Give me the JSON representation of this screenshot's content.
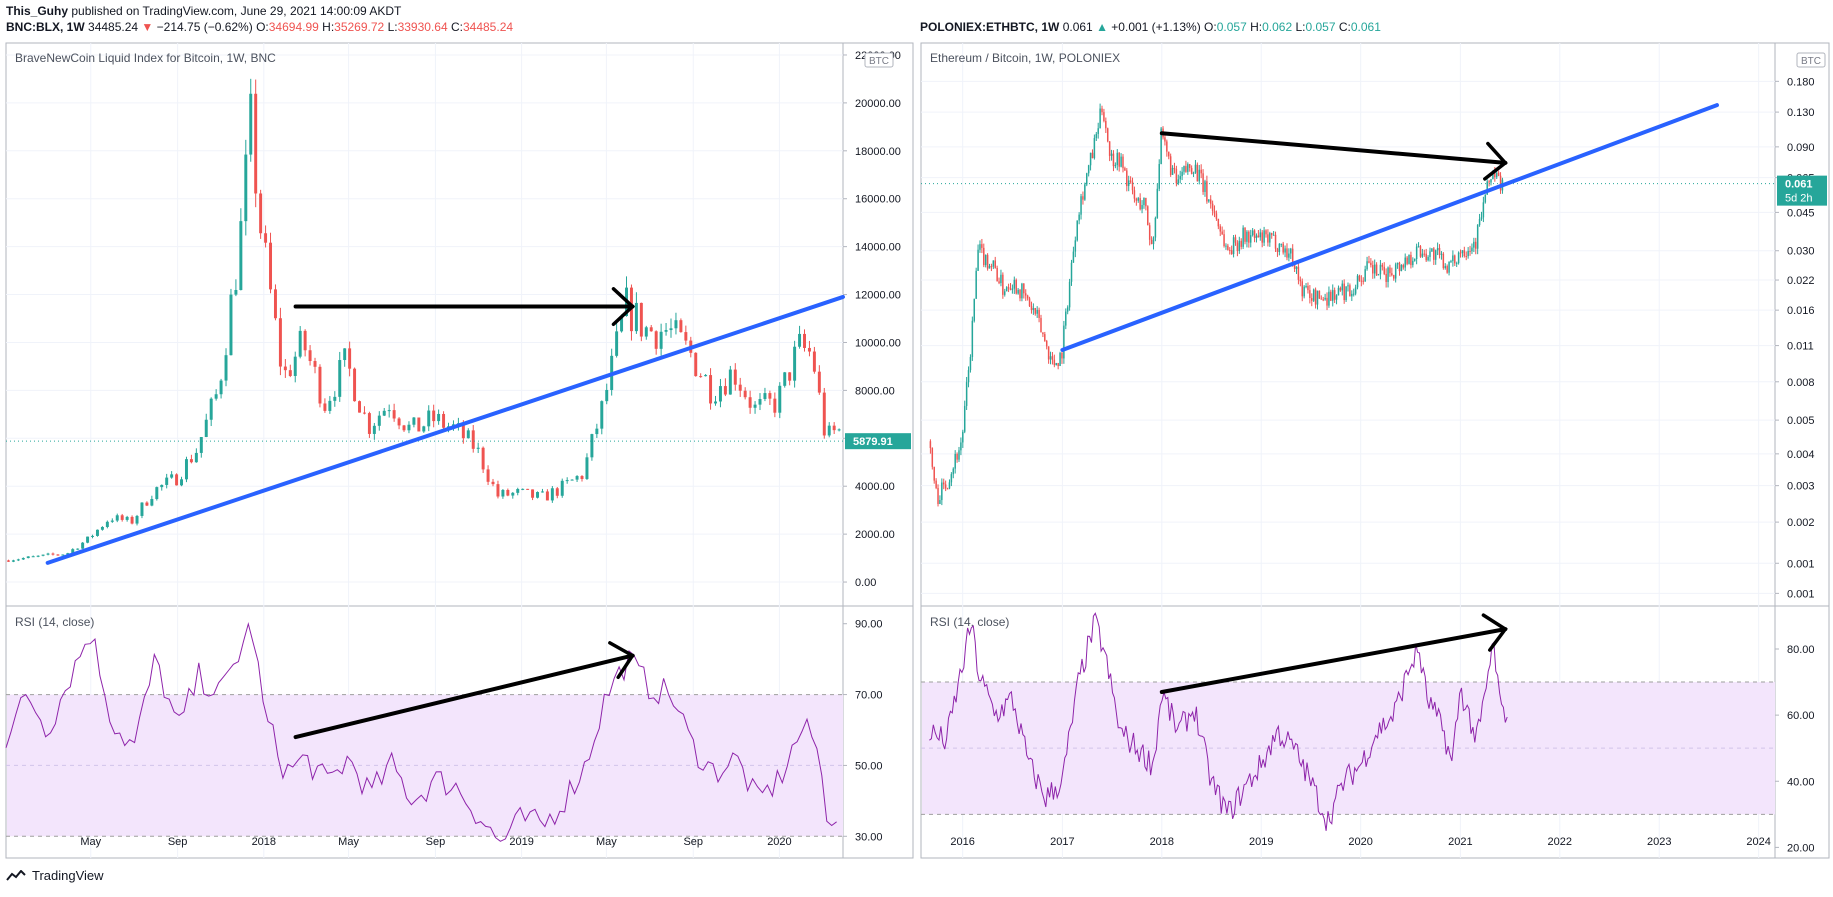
{
  "header": {
    "author": "This_Guhy",
    "published_text": "published on TradingView.com, June 29, 2021 14:00:09 AKDT"
  },
  "left_quote": {
    "symbol": "BNC:BLX, 1W",
    "last": "34485.24",
    "arrow": "▼",
    "change": "−214.75 (−0.62%)",
    "o_label": "O:",
    "o": "34694.99",
    "h_label": "H:",
    "h": "35269.72",
    "l_label": "L:",
    "l": "33930.64",
    "c_label": "C:",
    "c": "34485.24"
  },
  "right_quote": {
    "symbol": "POLONIEX:ETHBTC, 1W",
    "last": "0.061",
    "arrow": "▲",
    "change": "+0.001 (+1.13%)",
    "o_label": "O:",
    "o": "0.057",
    "h_label": "H:",
    "h": "0.062",
    "l_label": "L:",
    "l": "0.057",
    "c_label": "C:",
    "c": "0.061"
  },
  "brand": {
    "name": "TradingView"
  },
  "colors": {
    "up": "#26a69a",
    "down": "#ef5350",
    "trend": "#2962ff",
    "rsi": "#8e24aa",
    "rsi_band": "#f3e5fc"
  },
  "chart_data": [
    {
      "type": "candlestick",
      "title": "BraveNewCoin Liquid Index for Bitcoin, 1W, BNC",
      "currency_badge": "BTC",
      "last_price_label": "5879.91",
      "ylim": [
        -1000,
        22500
      ],
      "y_ticks": [
        "0.00",
        "2000.00",
        "4000.00",
        "6000.00",
        "8000.00",
        "10000.00",
        "12000.00",
        "14000.00",
        "16000.00",
        "18000.00",
        "20000.00",
        "22000.00"
      ],
      "x_tick_labels": [
        "May",
        "Sep",
        "2018",
        "May",
        "Sep",
        "2019",
        "May",
        "Sep",
        "2020"
      ],
      "x_tick_dates": [
        "2017-05-01",
        "2017-09-01",
        "2018-01-01",
        "2018-05-01",
        "2018-09-01",
        "2019-01-01",
        "2019-05-01",
        "2019-09-01",
        "2020-01-01"
      ],
      "x_range": [
        "2017-01-01",
        "2020-03-31"
      ],
      "anchors": [
        [
          "2017-01-01",
          900
        ],
        [
          "2017-03-01",
          1100
        ],
        [
          "2017-04-01",
          1200
        ],
        [
          "2017-05-01",
          1800
        ],
        [
          "2017-06-01",
          2700
        ],
        [
          "2017-07-01",
          2500
        ],
        [
          "2017-08-01",
          3800
        ],
        [
          "2017-09-01",
          4300
        ],
        [
          "2017-10-01",
          5500
        ],
        [
          "2017-11-01",
          8000
        ],
        [
          "2017-12-01",
          14000
        ],
        [
          "2017-12-17",
          19000
        ],
        [
          "2018-01-01",
          14500
        ],
        [
          "2018-02-01",
          8500
        ],
        [
          "2018-03-01",
          10000
        ],
        [
          "2018-04-01",
          7500
        ],
        [
          "2018-05-01",
          9200
        ],
        [
          "2018-06-01",
          6500
        ],
        [
          "2018-07-01",
          7500
        ],
        [
          "2018-08-01",
          6300
        ],
        [
          "2018-09-01",
          6800
        ],
        [
          "2018-10-01",
          6400
        ],
        [
          "2018-11-01",
          5600
        ],
        [
          "2018-12-01",
          3600
        ],
        [
          "2019-01-01",
          3700
        ],
        [
          "2019-02-01",
          3500
        ],
        [
          "2019-03-01",
          3900
        ],
        [
          "2019-04-01",
          4500
        ],
        [
          "2019-05-01",
          7500
        ],
        [
          "2019-06-01",
          11500
        ],
        [
          "2019-07-01",
          10500
        ],
        [
          "2019-08-01",
          10500
        ],
        [
          "2019-09-01",
          9500
        ],
        [
          "2019-10-01",
          8000
        ],
        [
          "2019-11-01",
          8800
        ],
        [
          "2019-12-01",
          7200
        ],
        [
          "2020-01-01",
          7500
        ],
        [
          "2020-02-01",
          9800
        ],
        [
          "2020-02-20",
          9500
        ],
        [
          "2020-03-10",
          6000
        ],
        [
          "2020-03-25",
          6300
        ]
      ],
      "trendline": {
        "from": [
          "2017-03-01",
          800
        ],
        "to": [
          "2020-03-31",
          11900
        ]
      },
      "arrow_line": {
        "from": [
          "2018-02-15",
          11500
        ],
        "to": [
          "2019-06-07",
          11500
        ]
      },
      "rsi": {
        "label": "RSI (14, close)",
        "ylim": [
          25,
          95
        ],
        "band": [
          30,
          70
        ],
        "mid": 50,
        "y_ticks": [
          "30.00",
          "50.00",
          "70.00",
          "90.00"
        ],
        "anchors": [
          [
            "2017-01-01",
            58
          ],
          [
            "2017-02-01",
            70
          ],
          [
            "2017-03-01",
            60
          ],
          [
            "2017-04-01",
            75
          ],
          [
            "2017-05-01",
            88
          ],
          [
            "2017-06-01",
            62
          ],
          [
            "2017-07-01",
            55
          ],
          [
            "2017-08-01",
            80
          ],
          [
            "2017-09-01",
            60
          ],
          [
            "2017-10-01",
            75
          ],
          [
            "2017-11-01",
            70
          ],
          [
            "2017-12-15",
            90
          ],
          [
            "2018-01-01",
            65
          ],
          [
            "2018-02-01",
            48
          ],
          [
            "2018-03-01",
            52
          ],
          [
            "2018-04-01",
            45
          ],
          [
            "2018-05-01",
            52
          ],
          [
            "2018-06-01",
            42
          ],
          [
            "2018-07-01",
            50
          ],
          [
            "2018-08-01",
            40
          ],
          [
            "2018-09-01",
            46
          ],
          [
            "2018-10-01",
            44
          ],
          [
            "2018-11-01",
            36
          ],
          [
            "2018-12-01",
            28
          ],
          [
            "2019-01-01",
            35
          ],
          [
            "2019-02-01",
            33
          ],
          [
            "2019-03-01",
            40
          ],
          [
            "2019-04-01",
            50
          ],
          [
            "2019-05-01",
            70
          ],
          [
            "2019-06-01",
            80
          ],
          [
            "2019-07-01",
            72
          ],
          [
            "2019-08-01",
            70
          ],
          [
            "2019-09-01",
            55
          ],
          [
            "2019-10-01",
            48
          ],
          [
            "2019-11-01",
            52
          ],
          [
            "2019-12-01",
            40
          ],
          [
            "2020-01-01",
            46
          ],
          [
            "2020-02-01",
            60
          ],
          [
            "2020-02-20",
            58
          ],
          [
            "2020-03-10",
            35
          ],
          [
            "2020-03-25",
            37
          ]
        ],
        "arrow_line": {
          "from": [
            "2018-02-15",
            58
          ],
          "to": [
            "2019-06-07",
            81
          ]
        }
      }
    },
    {
      "type": "candlestick",
      "title": "Ethereum / Bitcoin, 1W, POLONIEX",
      "currency_badge": "BTC",
      "last_price_label": "0.061",
      "countdown_label": "5d 2h",
      "y_scale": "log",
      "ylim": [
        0.0007,
        0.27
      ],
      "y_ticks": [
        "0.001",
        "0.001",
        "0.002",
        "0.003",
        "0.004",
        "0.005",
        "0.008",
        "0.011",
        "0.016",
        "0.022",
        "0.030",
        "0.045",
        "0.065",
        "0.090",
        "0.130",
        "0.180"
      ],
      "y_tick_values": [
        0.0008,
        0.0011,
        0.0017,
        0.0025,
        0.0035,
        0.005,
        0.0075,
        0.011,
        0.016,
        0.022,
        0.03,
        0.045,
        0.065,
        0.09,
        0.13,
        0.18
      ],
      "x_tick_labels": [
        "2016",
        "2017",
        "2018",
        "2019",
        "2020",
        "2021",
        "2022",
        "2023",
        "2024"
      ],
      "x_tick_dates": [
        "2016-01-01",
        "2017-01-01",
        "2018-01-01",
        "2019-01-01",
        "2020-01-01",
        "2021-01-01",
        "2022-01-01",
        "2023-01-01",
        "2024-01-01"
      ],
      "x_range": [
        "2015-08-01",
        "2024-03-01"
      ],
      "anchors": [
        [
          "2015-09-01",
          0.004
        ],
        [
          "2015-10-01",
          0.0022
        ],
        [
          "2015-11-01",
          0.0025
        ],
        [
          "2016-01-01",
          0.004
        ],
        [
          "2016-02-01",
          0.01
        ],
        [
          "2016-03-01",
          0.03
        ],
        [
          "2016-05-01",
          0.025
        ],
        [
          "2016-06-01",
          0.02
        ],
        [
          "2016-07-01",
          0.022
        ],
        [
          "2016-08-01",
          0.02
        ],
        [
          "2016-10-01",
          0.015
        ],
        [
          "2016-12-01",
          0.009
        ],
        [
          "2017-01-01",
          0.01
        ],
        [
          "2017-03-01",
          0.045
        ],
        [
          "2017-05-01",
          0.09
        ],
        [
          "2017-06-01",
          0.14
        ],
        [
          "2017-07-01",
          0.08
        ],
        [
          "2017-08-01",
          0.08
        ],
        [
          "2017-10-01",
          0.05
        ],
        [
          "2017-11-01",
          0.05
        ],
        [
          "2017-12-01",
          0.03
        ],
        [
          "2018-01-01",
          0.1
        ],
        [
          "2018-03-01",
          0.06
        ],
        [
          "2018-04-01",
          0.07
        ],
        [
          "2018-05-01",
          0.075
        ],
        [
          "2018-07-01",
          0.05
        ],
        [
          "2018-08-01",
          0.04
        ],
        [
          "2018-09-01",
          0.03
        ],
        [
          "2018-11-01",
          0.035
        ],
        [
          "2019-01-01",
          0.034
        ],
        [
          "2019-03-01",
          0.033
        ],
        [
          "2019-05-01",
          0.028
        ],
        [
          "2019-06-01",
          0.02
        ],
        [
          "2019-08-01",
          0.018
        ],
        [
          "2019-10-01",
          0.019
        ],
        [
          "2019-12-01",
          0.02
        ],
        [
          "2020-02-01",
          0.025
        ],
        [
          "2020-04-01",
          0.023
        ],
        [
          "2020-06-01",
          0.026
        ],
        [
          "2020-08-01",
          0.03
        ],
        [
          "2020-10-01",
          0.029
        ],
        [
          "2020-12-01",
          0.025
        ],
        [
          "2021-01-01",
          0.03
        ],
        [
          "2021-03-01",
          0.033
        ],
        [
          "2021-04-01",
          0.05
        ],
        [
          "2021-05-01",
          0.07
        ],
        [
          "2021-06-01",
          0.06
        ]
      ],
      "trendline": {
        "from": [
          "2017-01-01",
          0.0105
        ],
        "to": [
          "2023-08-01",
          0.14
        ]
      },
      "arrow_line": {
        "from": [
          "2018-01-01",
          0.104
        ],
        "to": [
          "2021-06-15",
          0.076
        ]
      },
      "rsi": {
        "label": "RSI (14, close)",
        "ylim": [
          18,
          93
        ],
        "band": [
          30,
          70
        ],
        "mid": 50,
        "y_ticks": [
          "20.00",
          "40.00",
          "60.00",
          "80.00"
        ],
        "anchors": [
          [
            "2015-09-01",
            55
          ],
          [
            "2015-11-01",
            52
          ],
          [
            "2016-01-01",
            75
          ],
          [
            "2016-02-01",
            88
          ],
          [
            "2016-03-01",
            72
          ],
          [
            "2016-05-01",
            60
          ],
          [
            "2016-07-01",
            65
          ],
          [
            "2016-09-01",
            45
          ],
          [
            "2016-11-01",
            35
          ],
          [
            "2017-01-01",
            40
          ],
          [
            "2017-03-01",
            70
          ],
          [
            "2017-05-01",
            88
          ],
          [
            "2017-06-01",
            80
          ],
          [
            "2017-08-01",
            55
          ],
          [
            "2017-10-01",
            50
          ],
          [
            "2017-12-01",
            45
          ],
          [
            "2018-01-01",
            67
          ],
          [
            "2018-03-01",
            55
          ],
          [
            "2018-05-01",
            62
          ],
          [
            "2018-07-01",
            40
          ],
          [
            "2018-09-01",
            30
          ],
          [
            "2018-11-01",
            38
          ],
          [
            "2019-01-01",
            45
          ],
          [
            "2019-03-01",
            55
          ],
          [
            "2019-05-01",
            50
          ],
          [
            "2019-07-01",
            40
          ],
          [
            "2019-09-01",
            28
          ],
          [
            "2019-11-01",
            40
          ],
          [
            "2020-01-01",
            45
          ],
          [
            "2020-03-01",
            55
          ],
          [
            "2020-05-01",
            60
          ],
          [
            "2020-07-01",
            75
          ],
          [
            "2020-08-01",
            80
          ],
          [
            "2020-09-01",
            65
          ],
          [
            "2020-11-01",
            55
          ],
          [
            "2020-12-01",
            45
          ],
          [
            "2021-01-01",
            68
          ],
          [
            "2021-02-01",
            60
          ],
          [
            "2021-03-01",
            52
          ],
          [
            "2021-04-01",
            65
          ],
          [
            "2021-05-01",
            82
          ],
          [
            "2021-06-01",
            60
          ],
          [
            "2021-06-25",
            62
          ]
        ],
        "arrow_line": {
          "from": [
            "2018-01-01",
            67
          ],
          "to": [
            "2021-06-15",
            86
          ]
        }
      }
    }
  ]
}
